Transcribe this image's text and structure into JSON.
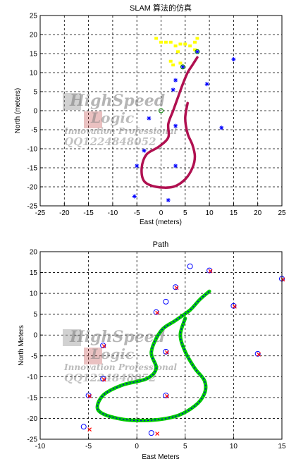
{
  "chart_data": [
    {
      "type": "scatter",
      "title": "SLAM 算法的仿真",
      "xlabel": "East (meters)",
      "ylabel": "North (meters)",
      "xlim": [
        -25,
        25
      ],
      "ylim": [
        -25,
        25
      ],
      "xticks": [
        -25,
        -20,
        -15,
        -10,
        -5,
        0,
        5,
        10,
        15,
        20,
        25
      ],
      "yticks": [
        -25,
        -20,
        -15,
        -10,
        -5,
        0,
        5,
        10,
        15,
        20,
        25
      ],
      "grid": true,
      "colors": {
        "landmark": "#0000ff",
        "path": "#b01050",
        "sensor": "#ffff00",
        "robot": "#008000"
      },
      "landmarks": [
        {
          "x": 4.5,
          "y": 11.5
        },
        {
          "x": 2.5,
          "y": 5.5
        },
        {
          "x": 3,
          "y": 8
        },
        {
          "x": 9.5,
          "y": 7
        },
        {
          "x": 15,
          "y": 13.5
        },
        {
          "x": 7.5,
          "y": 15.5
        },
        {
          "x": -2.5,
          "y": -2
        },
        {
          "x": 3,
          "y": -4
        },
        {
          "x": 12.5,
          "y": -4.5
        },
        {
          "x": -3.5,
          "y": -10.5
        },
        {
          "x": 3,
          "y": -14.5
        },
        {
          "x": -5,
          "y": -14.5
        },
        {
          "x": -5.5,
          "y": -22.5
        },
        {
          "x": 1.5,
          "y": -23.5
        }
      ],
      "path": [
        {
          "x": 5.5,
          "y": 2
        },
        {
          "x": 5,
          "y": -2
        },
        {
          "x": 5.5,
          "y": -6
        },
        {
          "x": 6.5,
          "y": -9
        },
        {
          "x": 7,
          "y": -12
        },
        {
          "x": 6.5,
          "y": -15
        },
        {
          "x": 5,
          "y": -18
        },
        {
          "x": 2.5,
          "y": -20
        },
        {
          "x": -1,
          "y": -20
        },
        {
          "x": -3.5,
          "y": -18.5
        },
        {
          "x": -4,
          "y": -15
        },
        {
          "x": -3,
          "y": -11.5
        },
        {
          "x": -0.5,
          "y": -9.5
        },
        {
          "x": 1.5,
          "y": -7
        },
        {
          "x": 1.5,
          "y": -3.5
        },
        {
          "x": 2.5,
          "y": 0
        },
        {
          "x": 3.5,
          "y": 3.5
        },
        {
          "x": 4.5,
          "y": 7
        },
        {
          "x": 5.5,
          "y": 10
        },
        {
          "x": 6.5,
          "y": 12
        },
        {
          "x": 7.5,
          "y": 14
        }
      ],
      "sensor_readings": [
        {
          "x": -1,
          "y": 19
        },
        {
          "x": 0,
          "y": 18
        },
        {
          "x": 1,
          "y": 18
        },
        {
          "x": 2,
          "y": 18
        },
        {
          "x": 3,
          "y": 17
        },
        {
          "x": 3.5,
          "y": 15.5
        },
        {
          "x": 4,
          "y": 17.5
        },
        {
          "x": 5,
          "y": 17.5
        },
        {
          "x": 6,
          "y": 17
        },
        {
          "x": 7,
          "y": 18
        },
        {
          "x": 7.5,
          "y": 19
        },
        {
          "x": 2,
          "y": 13
        },
        {
          "x": 2.5,
          "y": 12
        },
        {
          "x": 4,
          "y": 12.5
        },
        {
          "x": 7,
          "y": 16
        }
      ],
      "robot_marks": [
        {
          "x": 7.5,
          "y": 15.5
        },
        {
          "x": 4.5,
          "y": 11.5
        },
        {
          "x": 0,
          "y": 0
        }
      ]
    },
    {
      "type": "line",
      "title": "Path",
      "xlabel": "East Meters",
      "ylabel": "North Meters",
      "xlim": [
        -10,
        15
      ],
      "ylim": [
        -25,
        20
      ],
      "xticks": [
        -10,
        -5,
        0,
        5,
        10,
        15
      ],
      "yticks": [
        -25,
        -20,
        -15,
        -10,
        -5,
        0,
        5,
        10,
        15,
        20
      ],
      "grid": true,
      "colors": {
        "true_path": "#00cc00",
        "est_path": "#0000cc",
        "true_landmark": "#0000ff",
        "est_landmark": "#ff0000"
      },
      "true_landmarks": [
        {
          "x": 5.5,
          "y": 16.5
        },
        {
          "x": 7.5,
          "y": 15.5
        },
        {
          "x": 15,
          "y": 13.5
        },
        {
          "x": 4,
          "y": 11.5
        },
        {
          "x": 3,
          "y": 8
        },
        {
          "x": 10,
          "y": 7
        },
        {
          "x": 2,
          "y": 5.5
        },
        {
          "x": -3.5,
          "y": -2.5
        },
        {
          "x": 3,
          "y": -4
        },
        {
          "x": 12.5,
          "y": -4.5
        },
        {
          "x": -3.5,
          "y": -10.5
        },
        {
          "x": -5,
          "y": -14.5
        },
        {
          "x": 3,
          "y": -14.5
        },
        {
          "x": -5.5,
          "y": -22
        },
        {
          "x": 1.5,
          "y": -23.5
        }
      ],
      "estimated_landmarks": [
        {
          "x": 7.5,
          "y": 15.5
        },
        {
          "x": 15,
          "y": 13.5
        },
        {
          "x": 4,
          "y": 11.5
        },
        {
          "x": 10,
          "y": 7
        },
        {
          "x": 2,
          "y": 5.5
        },
        {
          "x": -3.5,
          "y": -2.5
        },
        {
          "x": 3,
          "y": -4
        },
        {
          "x": 12.5,
          "y": -4.5
        },
        {
          "x": -3.5,
          "y": -10.5
        },
        {
          "x": -5,
          "y": -14.5
        },
        {
          "x": 3,
          "y": -14.5
        },
        {
          "x": -5,
          "y": -22.5
        },
        {
          "x": 2,
          "y": -23.5
        }
      ],
      "path": [
        {
          "x": 5,
          "y": 4
        },
        {
          "x": 4.5,
          "y": 0
        },
        {
          "x": 5,
          "y": -4
        },
        {
          "x": 6,
          "y": -8
        },
        {
          "x": 7,
          "y": -11
        },
        {
          "x": 7,
          "y": -14
        },
        {
          "x": 6,
          "y": -17
        },
        {
          "x": 4,
          "y": -19.5
        },
        {
          "x": 1,
          "y": -20.5
        },
        {
          "x": -2,
          "y": -20
        },
        {
          "x": -4,
          "y": -18
        },
        {
          "x": -3.5,
          "y": -14.5
        },
        {
          "x": -1.5,
          "y": -12
        },
        {
          "x": 1,
          "y": -10.5
        },
        {
          "x": 2,
          "y": -8
        },
        {
          "x": 1.5,
          "y": -4
        },
        {
          "x": 2.5,
          "y": 1
        },
        {
          "x": 4,
          "y": 3.5
        },
        {
          "x": 5.5,
          "y": 6
        },
        {
          "x": 6.5,
          "y": 8.5
        },
        {
          "x": 7.5,
          "y": 10.5
        }
      ]
    }
  ],
  "watermark": {
    "brand": "HighSpeed",
    "brand2": "Logic",
    "tagline": "Innovation Professional",
    "qq": "QQ1224848052"
  }
}
